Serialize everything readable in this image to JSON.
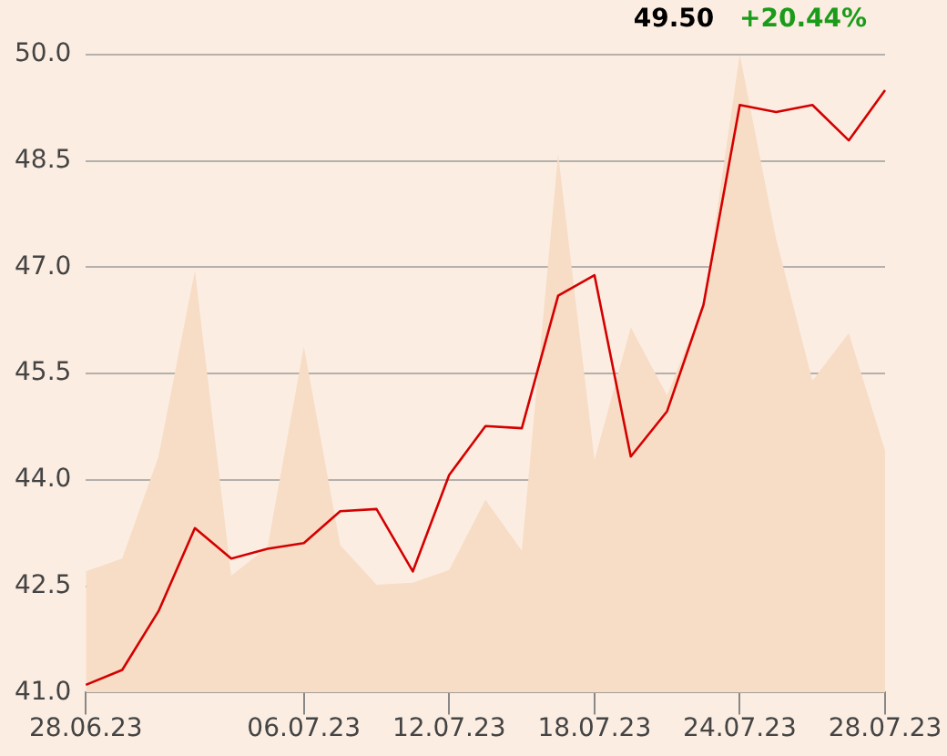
{
  "chart_data": {
    "type": "line",
    "categories": [
      "28.06.23",
      null,
      null,
      null,
      null,
      null,
      "06.07.23",
      null,
      null,
      null,
      "12.07.23",
      null,
      null,
      null,
      "18.07.23",
      null,
      null,
      null,
      "24.07.23",
      null,
      null,
      null,
      "28.07.23"
    ],
    "series": [
      {
        "type": "area",
        "color": "#f7dcc6",
        "values": [
          42.71,
          42.89,
          44.33,
          46.95,
          42.65,
          43.05,
          45.88,
          43.08,
          42.52,
          42.55,
          42.73,
          43.72,
          43.0,
          48.6,
          44.28,
          46.15,
          45.19,
          46.47,
          50.0,
          47.4,
          45.4,
          46.07,
          44.41
        ]
      },
      {
        "type": "line",
        "color": "#d40000",
        "values": [
          41.11,
          41.32,
          42.15,
          43.32,
          42.89,
          43.03,
          43.11,
          43.56,
          43.59,
          42.71,
          44.07,
          44.76,
          44.73,
          46.6,
          46.89,
          44.33,
          44.97,
          46.47,
          49.29,
          49.19,
          49.29,
          48.79,
          49.5
        ]
      }
    ],
    "ylim": [
      41,
      50
    ],
    "yticks": [
      {
        "value": 41,
        "label": "41.0"
      },
      {
        "value": 42.5,
        "label": "42.5"
      },
      {
        "value": 44,
        "label": "44.0"
      },
      {
        "value": 45.5,
        "label": "45.5"
      },
      {
        "value": 47,
        "label": "47.0"
      },
      {
        "value": 48.5,
        "label": "48.5"
      },
      {
        "value": 50,
        "label": "50.0"
      }
    ],
    "grid": "y",
    "legend": false,
    "marker": "none",
    "line_style": "solid",
    "annotations": [
      "49.50",
      "+20.44%"
    ]
  }
}
